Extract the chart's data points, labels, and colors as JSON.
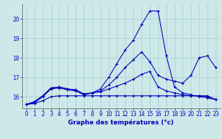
{
  "title": "Graphe des températures (°c)",
  "background_color": "#cce8e8",
  "grid_color": "#aacccc",
  "line_color": "#0000bb",
  "hours": [
    0,
    1,
    2,
    3,
    4,
    5,
    6,
    7,
    8,
    9,
    10,
    11,
    12,
    13,
    14,
    15,
    16,
    17,
    18,
    19,
    20,
    21,
    22,
    23
  ],
  "series1": [
    15.6,
    15.65,
    15.8,
    16.0,
    16.05,
    16.05,
    16.05,
    16.05,
    16.05,
    16.05,
    16.05,
    16.05,
    16.05,
    16.05,
    16.05,
    16.05,
    16.05,
    16.05,
    16.05,
    16.05,
    16.05,
    16.05,
    16.05,
    15.85
  ],
  "series2": [
    15.6,
    15.7,
    16.0,
    16.4,
    16.45,
    16.35,
    16.3,
    16.1,
    16.2,
    16.25,
    16.4,
    16.55,
    16.7,
    16.9,
    17.15,
    17.3,
    16.5,
    16.3,
    16.2,
    16.1,
    16.05,
    16.05,
    16.0,
    15.85
  ],
  "series3": [
    15.6,
    15.75,
    16.05,
    16.45,
    16.5,
    16.4,
    16.35,
    16.15,
    16.2,
    16.3,
    16.6,
    17.0,
    17.5,
    17.9,
    18.3,
    17.8,
    17.1,
    16.9,
    16.8,
    16.7,
    17.1,
    18.0,
    18.1,
    17.5
  ],
  "series4": [
    15.6,
    15.75,
    16.05,
    16.45,
    16.5,
    16.4,
    16.35,
    16.1,
    16.2,
    16.4,
    17.0,
    17.7,
    18.4,
    18.9,
    19.7,
    20.4,
    20.4,
    18.1,
    16.5,
    16.2,
    16.1,
    16.0,
    15.95,
    15.85
  ],
  "ylim_min": 15.4,
  "ylim_max": 20.75,
  "yticks": [
    16,
    17,
    18,
    19,
    20
  ],
  "marker": "+",
  "marker_size": 3,
  "line_width": 0.8,
  "tick_fontsize": 5.5,
  "title_fontsize": 6.5
}
